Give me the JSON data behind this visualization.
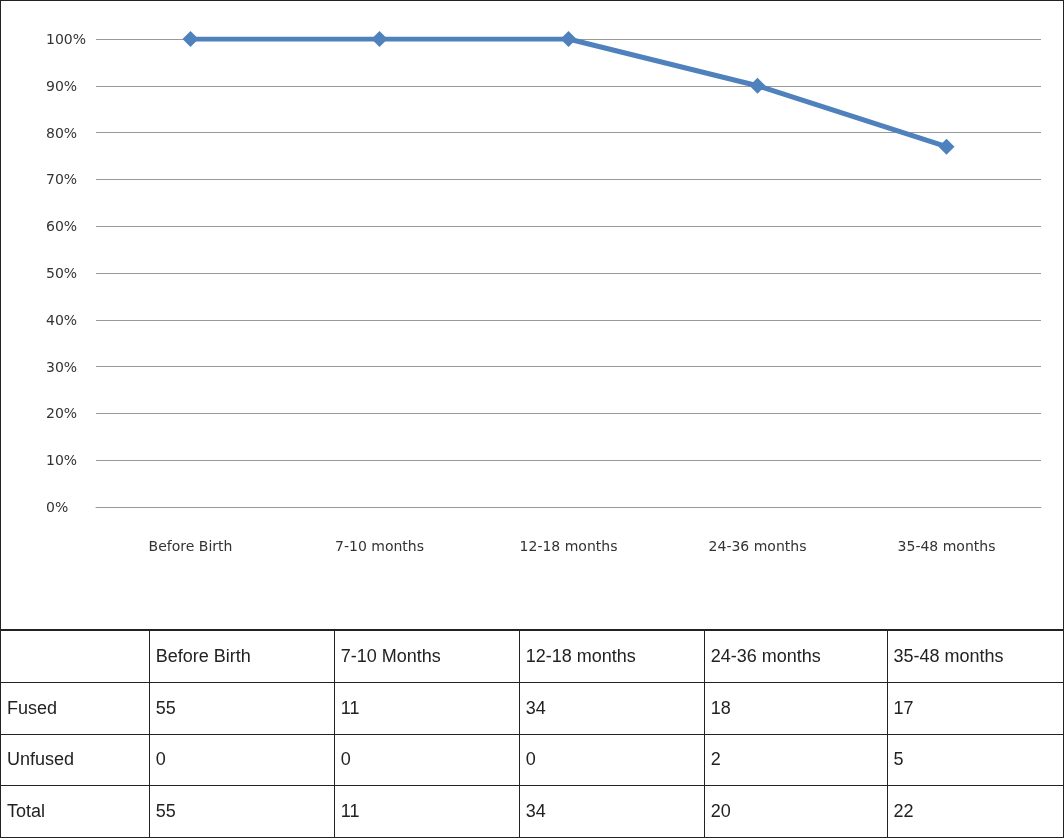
{
  "chart_data": [
    {
      "type": "line",
      "categories": [
        "Before Birth",
        "7-10 months",
        "12-18 months",
        "24-36 months",
        "35-48 months"
      ],
      "series": [
        {
          "color": "#4f81bd",
          "values": [
            100,
            100,
            100,
            90,
            77
          ]
        }
      ],
      "ylim": [
        0,
        100
      ],
      "yticks": [
        {
          "value": 0,
          "label": "0%"
        },
        {
          "value": 10,
          "label": "10%"
        },
        {
          "value": 20,
          "label": "20%"
        },
        {
          "value": 30,
          "label": "30%"
        },
        {
          "value": 40,
          "label": "40%"
        },
        {
          "value": 50,
          "label": "50%"
        },
        {
          "value": 60,
          "label": "60%"
        },
        {
          "value": 70,
          "label": "70%"
        },
        {
          "value": 80,
          "label": "80%"
        },
        {
          "value": 90,
          "label": "90%"
        },
        {
          "value": 100,
          "label": "100%"
        }
      ],
      "grid": "y",
      "marker": "diamond",
      "line_style": "solid"
    },
    {
      "type": "other",
      "categories": [
        "Before Birth",
        "7-10 Months",
        "12-18 months",
        "24-36 months",
        "35-48 months"
      ],
      "y_categories": [
        "Fused",
        "Unfused",
        "Total"
      ],
      "annotations": [
        "55",
        "11",
        "34",
        "18",
        "17",
        "0",
        "0",
        "0",
        "2",
        "5",
        "55",
        "11",
        "34",
        "20",
        "22"
      ]
    }
  ]
}
